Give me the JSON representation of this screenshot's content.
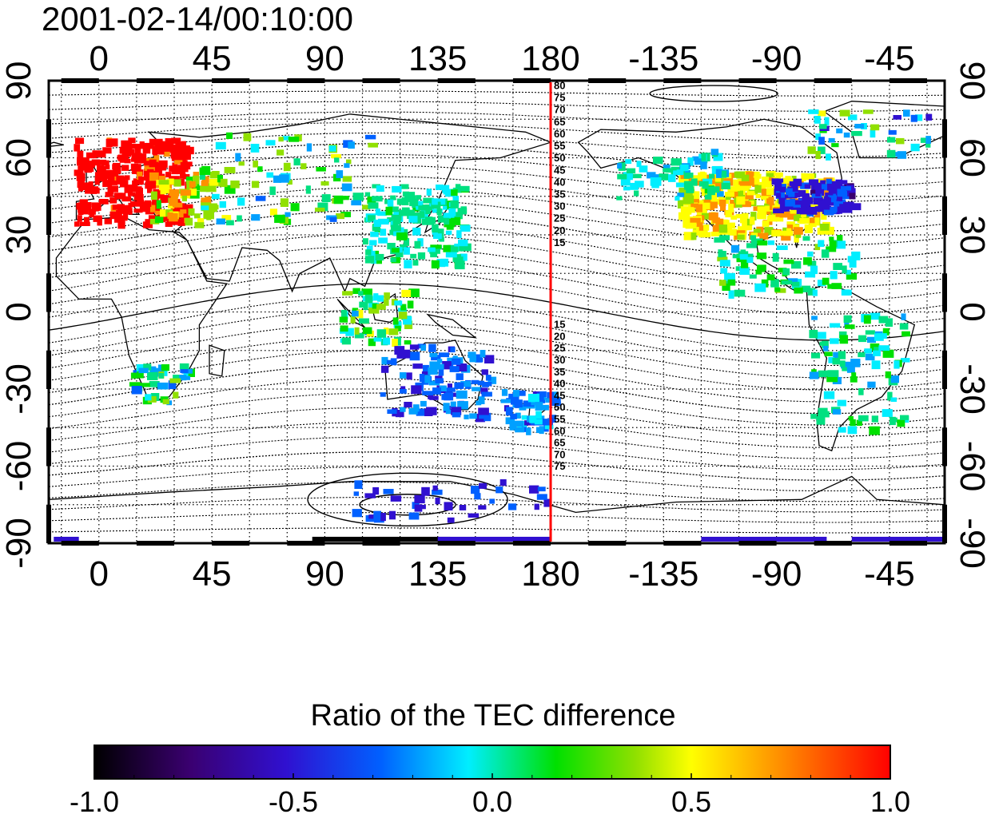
{
  "map": {
    "timestamp": "2001-02-14/00:10:00",
    "x_ticks": [
      {
        "label": "0",
        "lon": 0
      },
      {
        "label": "45",
        "lon": 45
      },
      {
        "label": "90",
        "lon": 90
      },
      {
        "label": "135",
        "lon": 135
      },
      {
        "label": "180",
        "lon": 180
      },
      {
        "label": "-135",
        "lon": 225
      },
      {
        "label": "-90",
        "lon": 270
      },
      {
        "label": "-45",
        "lon": 315
      }
    ],
    "y_ticks": [
      {
        "label": "90",
        "lat": 90
      },
      {
        "label": "60",
        "lat": 60
      },
      {
        "label": "30",
        "lat": 30
      },
      {
        "label": "0",
        "lat": 0
      },
      {
        "label": "-30",
        "lat": -30
      },
      {
        "label": "-60",
        "lat": -60
      },
      {
        "label": "-90",
        "lat": -90
      }
    ],
    "lon_range": [
      -20,
      337
    ],
    "lat_range": [
      -90,
      90
    ],
    "grid": true,
    "dusk_terminator_lon": 180,
    "terminator_color": "#ff0000",
    "contour_labels_north": [
      "80",
      "75",
      "70",
      "65",
      "60",
      "55",
      "50",
      "45",
      "40",
      "35",
      "30",
      "25",
      "20",
      "15"
    ],
    "contour_labels_south": [
      "15",
      "20",
      "25",
      "30",
      "35",
      "40",
      "45",
      "50",
      "55",
      "60",
      "65",
      "70",
      "75"
    ],
    "colorbar": {
      "title": "Ratio of the TEC difference",
      "ticks": [
        "-1.0",
        "-0.5",
        "0.0",
        "0.5",
        "1.0"
      ],
      "range": [
        -1.0,
        1.0
      ],
      "colormap": "rainbow (black–purple–blue–cyan–green–yellow–orange–red)"
    }
  }
}
